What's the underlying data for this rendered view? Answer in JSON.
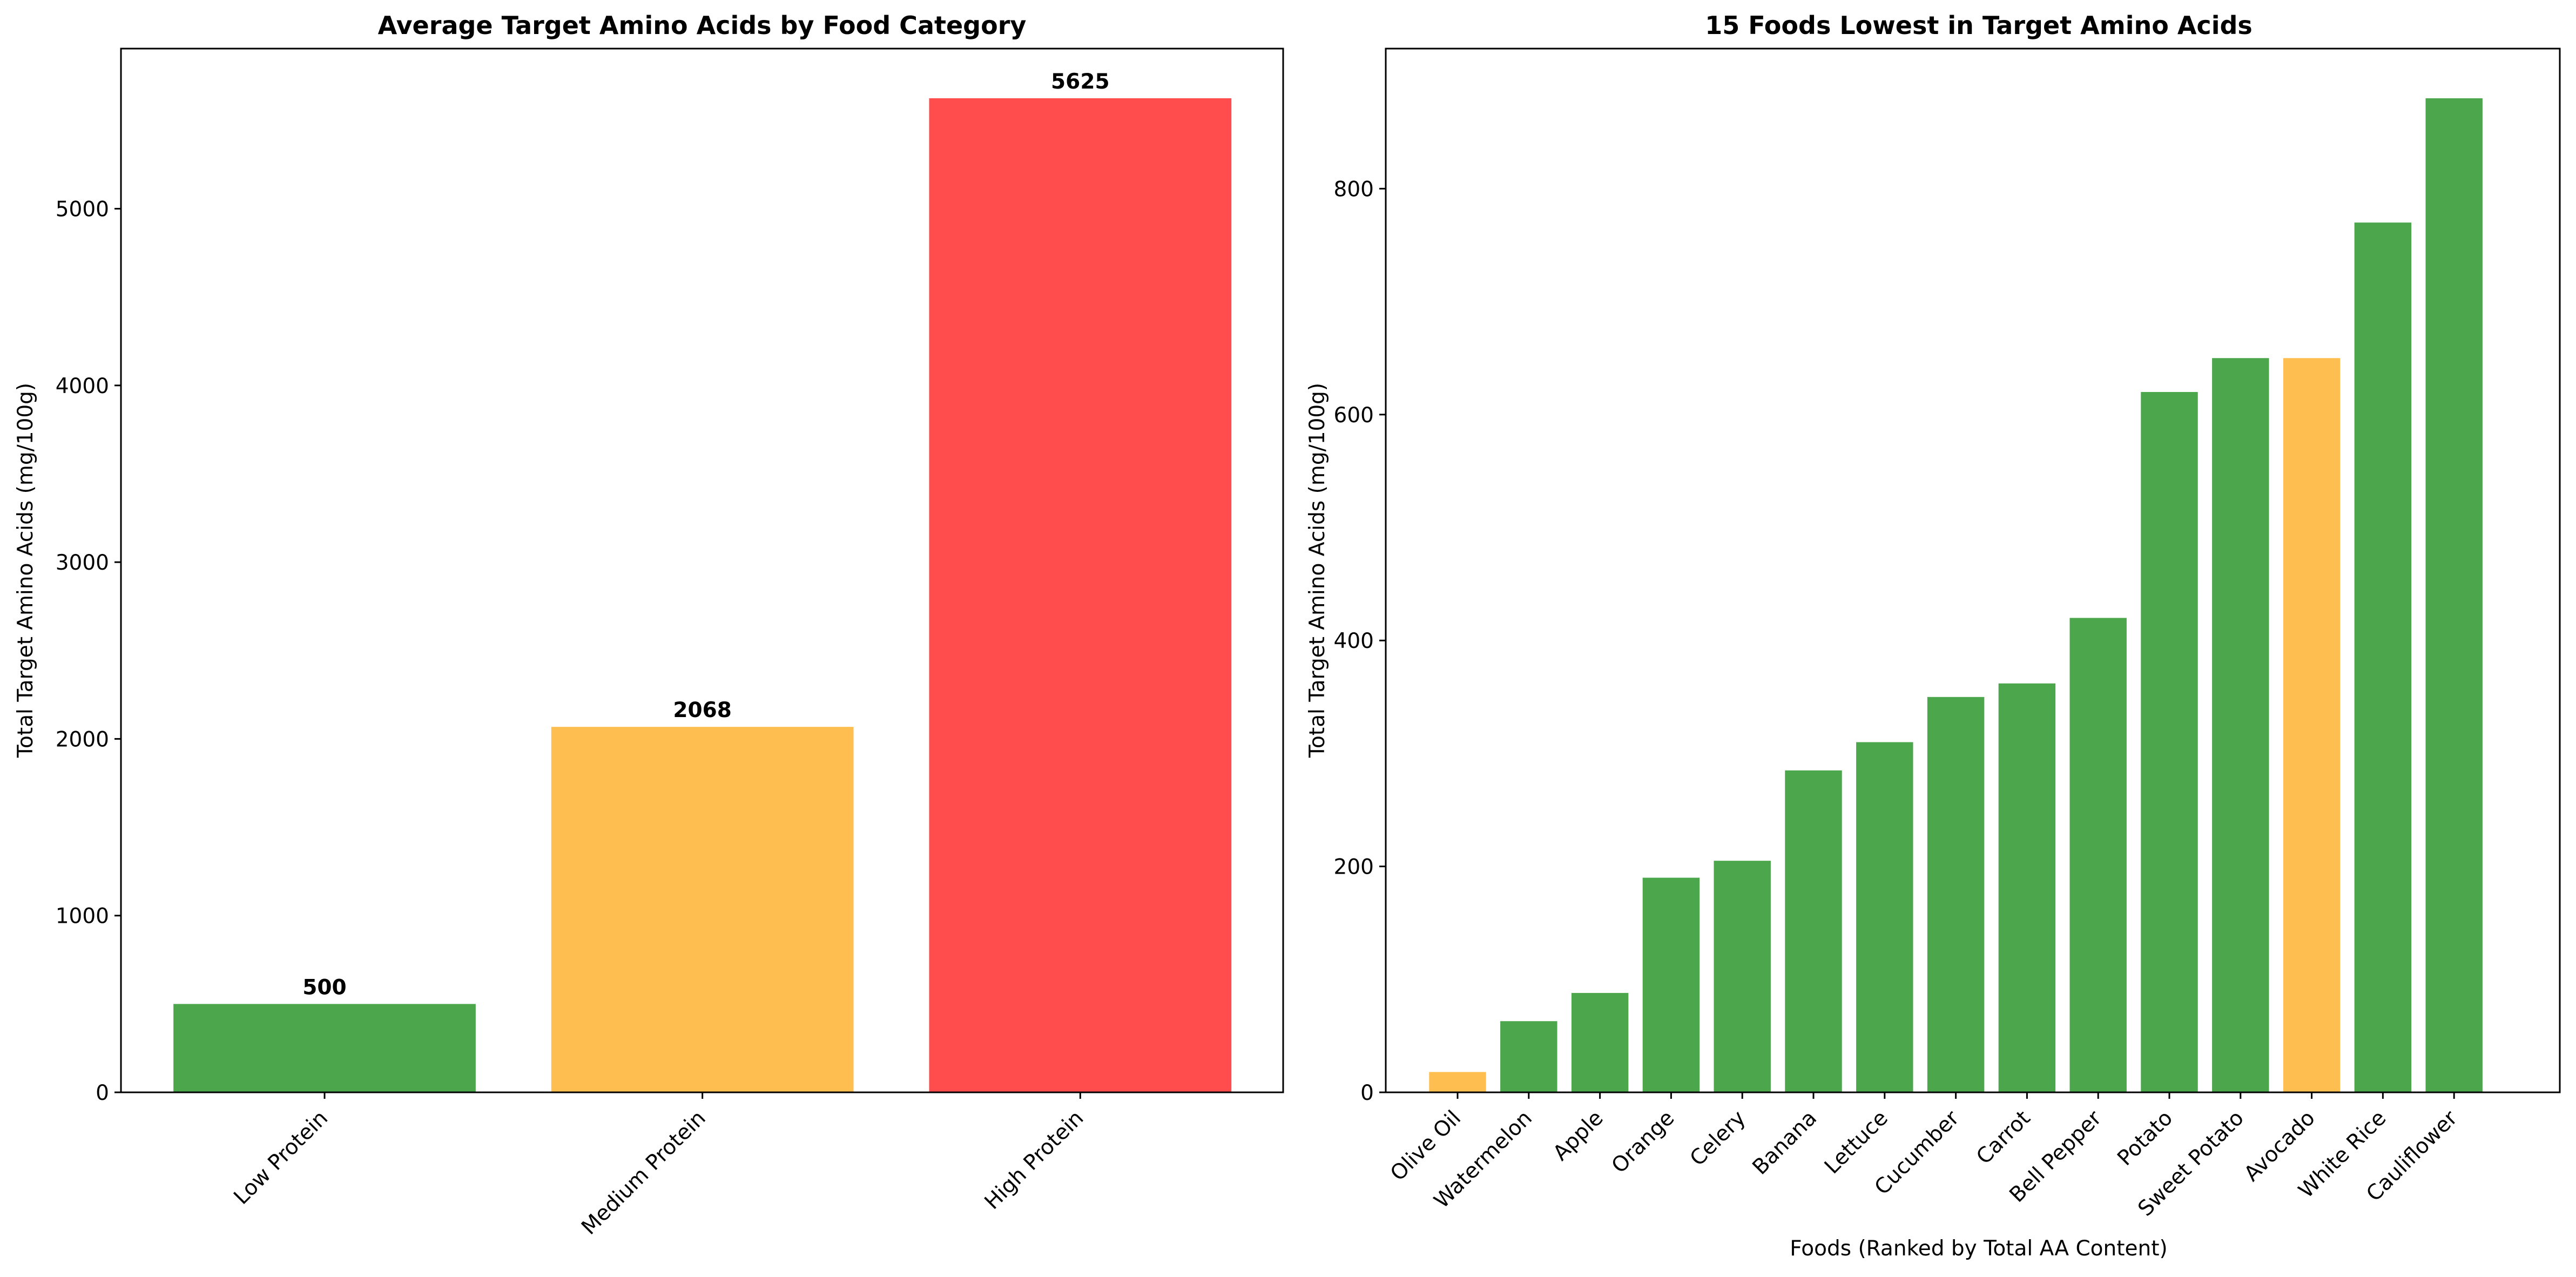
{
  "colors": {
    "low": "#4ca64c",
    "medium": "#ffbf50",
    "high": "#ff4c4c",
    "axis": "#000000",
    "background": "#ffffff"
  },
  "chart_data": [
    {
      "type": "bar",
      "title": "Average Target Amino Acids by Food Category",
      "xlabel": "",
      "ylabel": "Total Target Amino Acids (mg/100g)",
      "categories": [
        "Low Protein",
        "Medium Protein",
        "High Protein"
      ],
      "values": [
        500,
        2068,
        5625
      ],
      "value_labels": [
        "500",
        "2068",
        "5625"
      ],
      "bar_colors": [
        "#4ca64c",
        "#ffbf50",
        "#ff4c4c"
      ],
      "ylim": [
        0,
        5906
      ],
      "yticks": [
        0,
        1000,
        2000,
        3000,
        4000,
        5000
      ],
      "ytick_labels": [
        "0",
        "1000",
        "2000",
        "3000",
        "4000",
        "5000"
      ],
      "xtick_rotation": 45,
      "grid": false,
      "legend": "none"
    },
    {
      "type": "bar",
      "title": "15 Foods Lowest in Target Amino Acids",
      "xlabel": "Foods (Ranked by Total AA Content)",
      "ylabel": "Total Target Amino Acids (mg/100g)",
      "categories": [
        "Olive Oil",
        "Watermelon",
        "Apple",
        "Orange",
        "Celery",
        "Banana",
        "Lettuce",
        "Cucumber",
        "Carrot",
        "Bell Pepper",
        "Potato",
        "Sweet Potato",
        "Avocado",
        "White Rice",
        "Cauliflower"
      ],
      "values": [
        18,
        63,
        88,
        190,
        205,
        285,
        310,
        350,
        362,
        420,
        620,
        650,
        650,
        770,
        880
      ],
      "bar_colors": [
        "#ffbf50",
        "#4ca64c",
        "#4ca64c",
        "#4ca64c",
        "#4ca64c",
        "#4ca64c",
        "#4ca64c",
        "#4ca64c",
        "#4ca64c",
        "#4ca64c",
        "#4ca64c",
        "#4ca64c",
        "#ffbf50",
        "#4ca64c",
        "#4ca64c"
      ],
      "ylim": [
        0,
        924
      ],
      "yticks": [
        0,
        200,
        400,
        600,
        800
      ],
      "ytick_labels": [
        "0",
        "200",
        "400",
        "600",
        "800"
      ],
      "xtick_rotation": 45,
      "grid": false,
      "legend": "none"
    }
  ]
}
